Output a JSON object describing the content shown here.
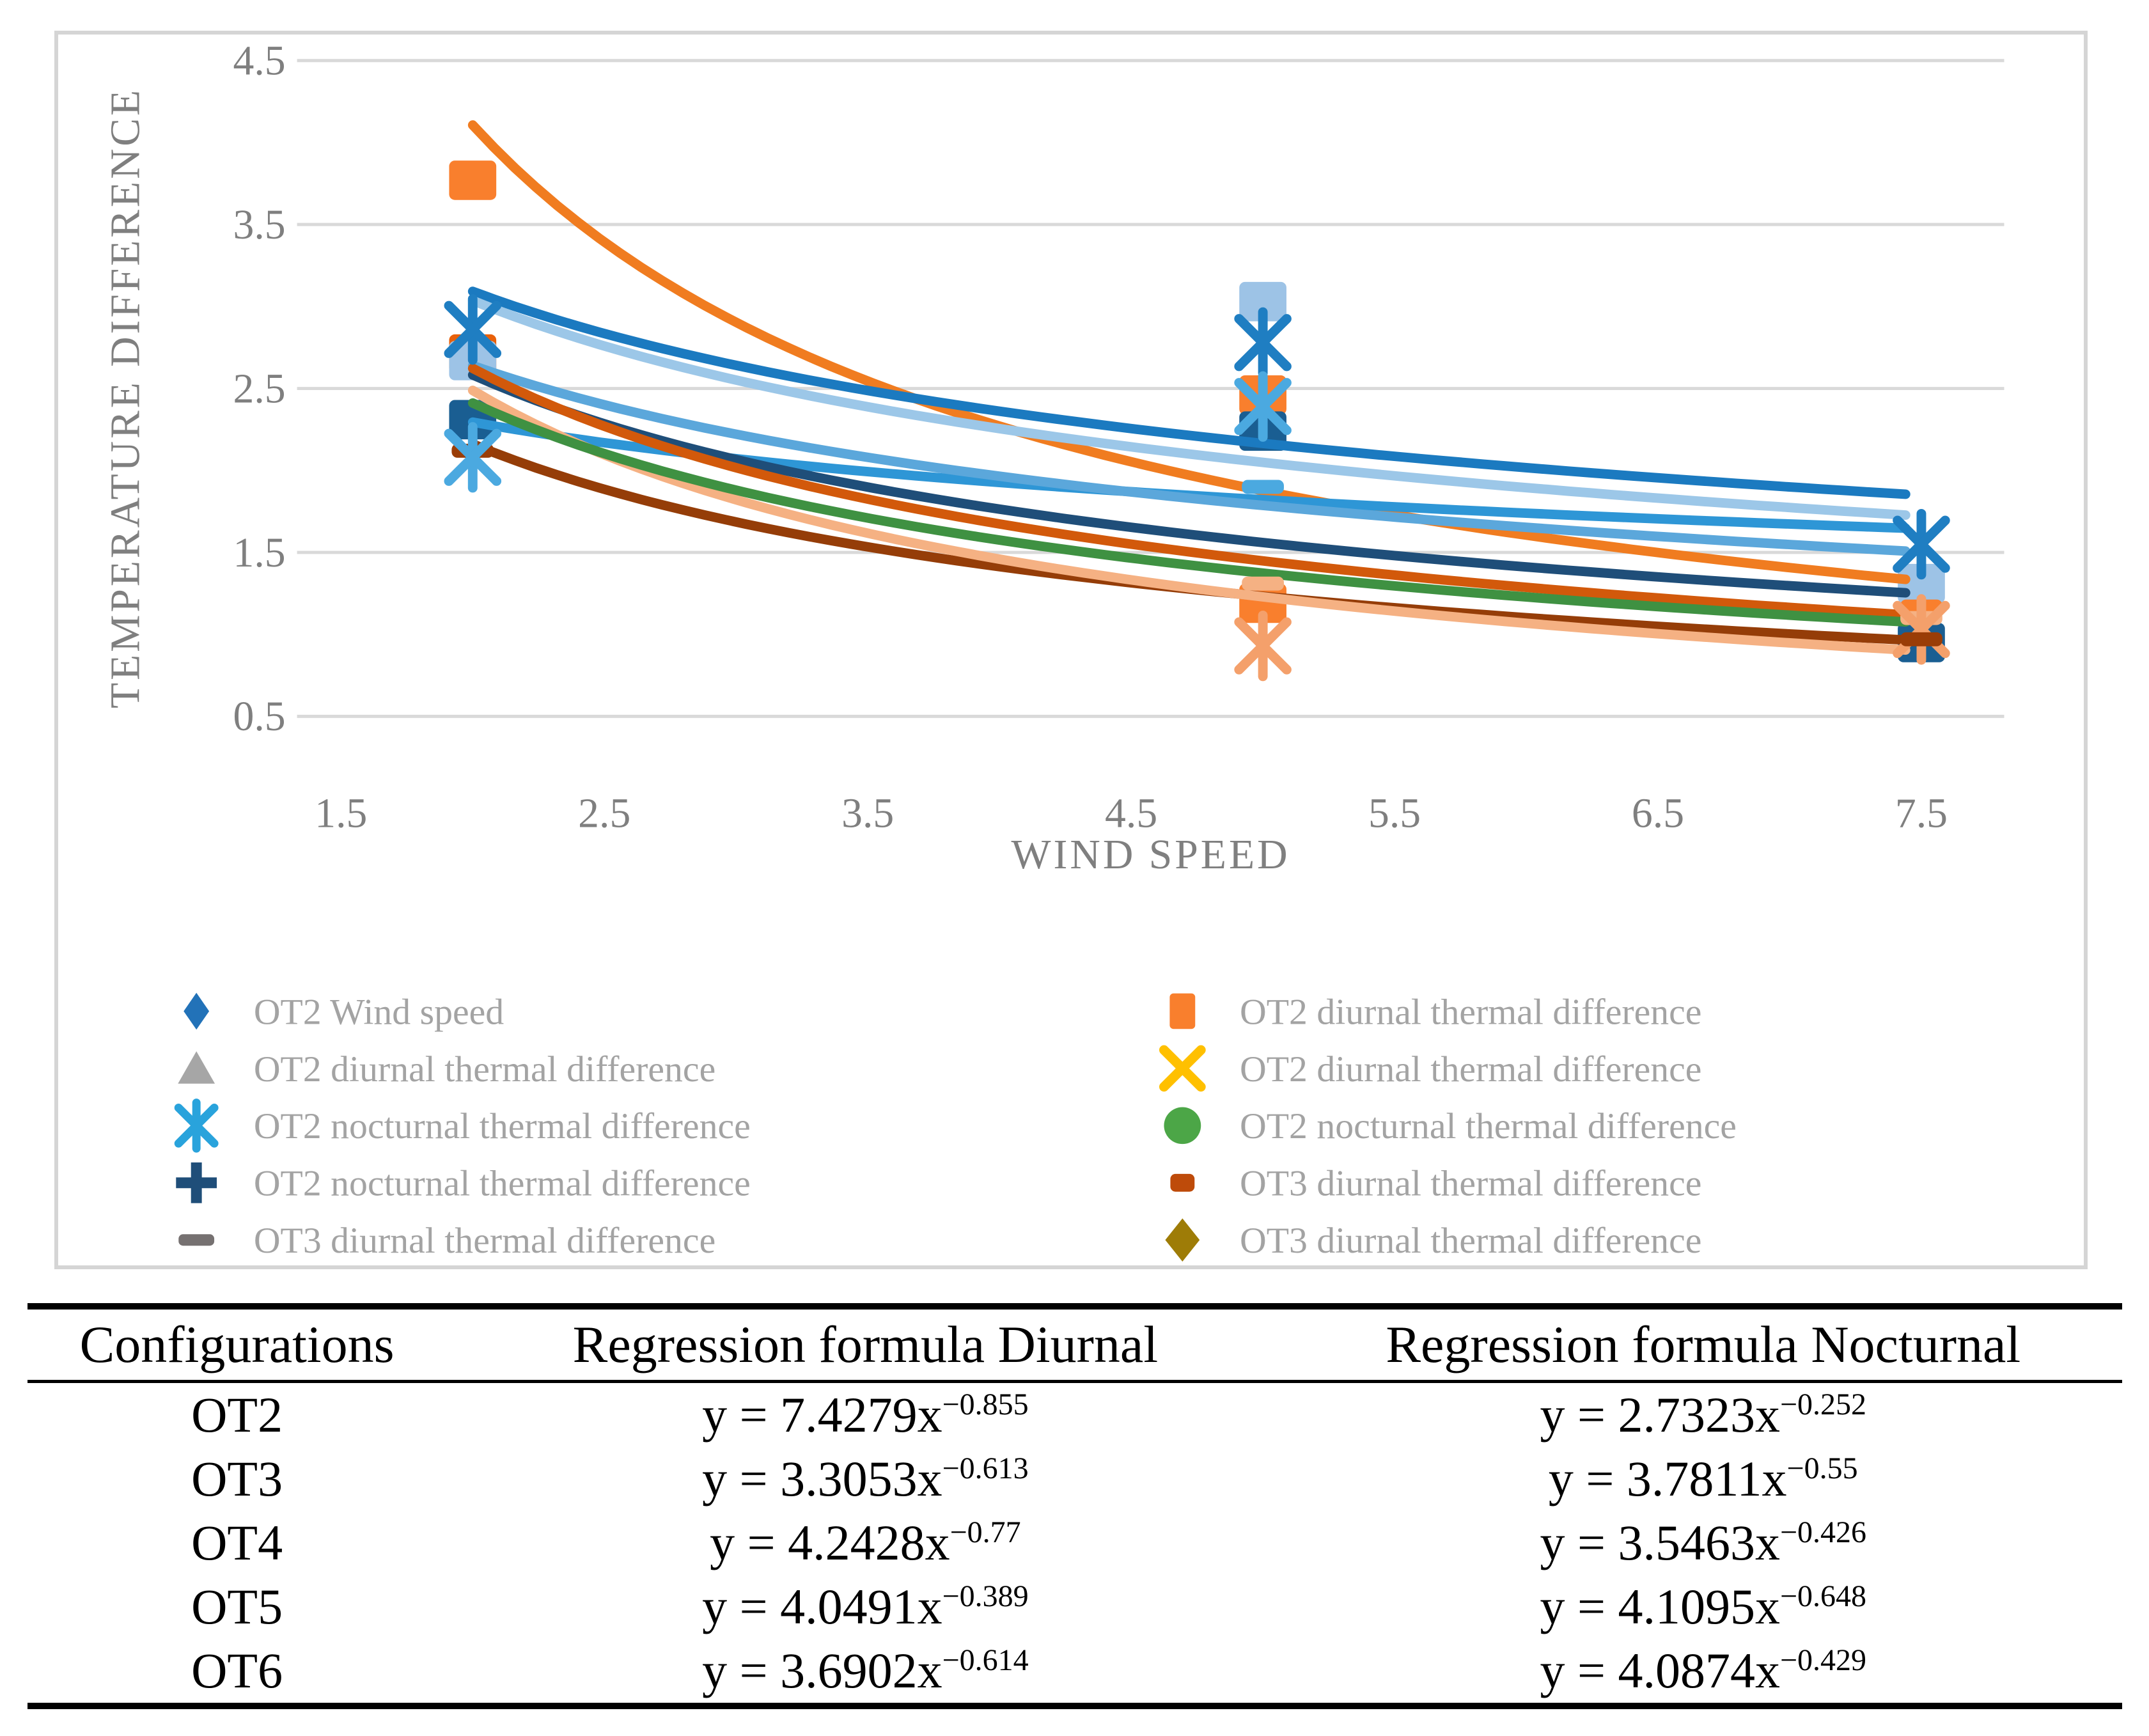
{
  "figure": {
    "border_color": "#D5D5D5",
    "gridline_color": "#D9D9D9",
    "axis_text_color": "#7F7F7F",
    "legend_text_color": "#A3A3A3"
  },
  "chart_data": {
    "type": "scatter",
    "title": "",
    "xlabel": "WIND SPEED",
    "ylabel": "TEMPERATURE DIFFERENCE",
    "xlim": [
      1.5,
      8.0
    ],
    "ylim": [
      0.5,
      4.5
    ],
    "xticks": [
      1.5,
      2.5,
      3.5,
      4.5,
      5.5,
      6.5,
      7.5
    ],
    "yticks": [
      0.5,
      1.5,
      2.5,
      3.5,
      4.5
    ],
    "grid": "horizontal",
    "legend_position": "bottom-two-columns",
    "trendlines": [
      {
        "name": "OT2 diurnal",
        "formula": "y = 7.4279x^-0.855",
        "a": 7.4279,
        "b": -0.855,
        "x_start": 2,
        "x_end": 7.5,
        "color": "#F07C20"
      },
      {
        "name": "OT2 nocturnal",
        "formula": "y = 2.7323x^-0.252",
        "a": 2.7323,
        "b": -0.252,
        "x_start": 2,
        "x_end": 7.5,
        "color": "#2E96D6"
      },
      {
        "name": "OT3 diurnal",
        "formula": "y = 3.3053x^-0.613",
        "a": 3.3053,
        "b": -0.613,
        "x_start": 2,
        "x_end": 7.5,
        "color": "#953D08"
      },
      {
        "name": "OT3 nocturnal",
        "formula": "y = 3.7811x^-0.55",
        "a": 3.7811,
        "b": -0.55,
        "x_start": 2,
        "x_end": 7.5,
        "color": "#1F4E79"
      },
      {
        "name": "OT4 diurnal",
        "formula": "y = 4.2428x^-0.77",
        "a": 4.2428,
        "b": -0.77,
        "x_start": 2,
        "x_end": 7.5,
        "color": "#F5B183"
      },
      {
        "name": "OT4 nocturnal",
        "formula": "y = 3.5463x^-0.426",
        "a": 3.5463,
        "b": -0.426,
        "x_start": 2,
        "x_end": 7.5,
        "color": "#5BA7DB"
      },
      {
        "name": "OT5 diurnal",
        "formula": "y = 4.0491x^-0.389",
        "a": 4.0491,
        "b": -0.389,
        "x_start": 2,
        "x_end": 7.5,
        "color": "#1B7AC0"
      },
      {
        "name": "OT5 nocturnal",
        "formula": "y = 4.1095x^-0.648",
        "a": 4.1095,
        "b": -0.648,
        "x_start": 2,
        "x_end": 7.5,
        "color": "#D2590B"
      },
      {
        "name": "OT6 diurnal",
        "formula": "y = 3.6902x^-0.614",
        "a": 3.6902,
        "b": -0.614,
        "x_start": 2,
        "x_end": 7.5,
        "color": "#3F9142"
      },
      {
        "name": "OT6 nocturnal",
        "formula": "y = 4.0874x^-0.429",
        "a": 4.0874,
        "b": -0.429,
        "x_start": 2,
        "x_end": 7.5,
        "color": "#9CC7E8"
      }
    ],
    "scatter_points": [
      {
        "x": 2,
        "y": 3.77,
        "shape": "square",
        "color": "#F97F2D"
      },
      {
        "x": 2,
        "y": 2.71,
        "shape": "square",
        "color": "#E8600A"
      },
      {
        "x": 2,
        "y": 2.67,
        "shape": "square",
        "color": "#9DC3E6"
      },
      {
        "x": 2,
        "y": 2.31,
        "shape": "square",
        "color": "#1A5E92"
      },
      {
        "x": 2,
        "y": 2.86,
        "shape": "asterisk",
        "color": "#1F7EC2"
      },
      {
        "x": 2,
        "y": 2.12,
        "shape": "dash",
        "color": "#9A3D07"
      },
      {
        "x": 2,
        "y": 2.08,
        "shape": "asterisk",
        "color": "#4BA9E0"
      },
      {
        "x": 5,
        "y": 3.03,
        "shape": "square",
        "color": "#9DC3E6"
      },
      {
        "x": 5,
        "y": 2.46,
        "shape": "square",
        "color": "#F97F2D"
      },
      {
        "x": 5,
        "y": 2.24,
        "shape": "square",
        "color": "#1A5E92"
      },
      {
        "x": 5,
        "y": 1.19,
        "shape": "square",
        "color": "#F97F2D"
      },
      {
        "x": 5,
        "y": 2.78,
        "shape": "asterisk",
        "color": "#1F7EC2"
      },
      {
        "x": 5,
        "y": 2.39,
        "shape": "asterisk",
        "color": "#4BA9E0"
      },
      {
        "x": 5,
        "y": 1.9,
        "shape": "dash",
        "color": "#4BA9E0"
      },
      {
        "x": 5,
        "y": 1.31,
        "shape": "dash",
        "color": "#F5B183"
      },
      {
        "x": 5,
        "y": 0.93,
        "shape": "asterisk",
        "color": "#F4A06B"
      },
      {
        "x": 7.5,
        "y": 1.31,
        "shape": "square",
        "color": "#9DC3E6"
      },
      {
        "x": 7.5,
        "y": 0.95,
        "shape": "square",
        "color": "#1A5E92"
      },
      {
        "x": 7.5,
        "y": 1.55,
        "shape": "asterisk",
        "color": "#1F7EC2"
      },
      {
        "x": 7.5,
        "y": 1.17,
        "shape": "dash",
        "color": "#F97F2D"
      },
      {
        "x": 7.5,
        "y": 1.1,
        "shape": "dash",
        "color": "#F5B183"
      },
      {
        "x": 7.5,
        "y": 1.03,
        "shape": "asterisk",
        "color": "#F4A06B"
      },
      {
        "x": 7.5,
        "y": 0.97,
        "shape": "dash",
        "color": "#9A3D07"
      }
    ],
    "legend": {
      "left": [
        {
          "label": "OT2 Wind speed",
          "marker": "diamond",
          "color": "#2272B8"
        },
        {
          "label": "OT2 diurnal thermal difference",
          "marker": "triangle",
          "color": "#A6A6A6"
        },
        {
          "label": "OT2 nocturnal thermal difference",
          "marker": "asterisk-small",
          "color": "#29A3DC"
        },
        {
          "label": "OT2 nocturnal thermal difference",
          "marker": "plus",
          "color": "#1F4E79"
        },
        {
          "label": "OT3 diurnal thermal difference",
          "marker": "dash-small",
          "color": "#767171"
        }
      ],
      "right": [
        {
          "label": "OT2 diurnal thermal difference",
          "marker": "square-tall",
          "color": "#F97F2D"
        },
        {
          "label": "OT2 diurnal thermal difference",
          "marker": "x",
          "color": "#FFC000"
        },
        {
          "label": "OT2 nocturnal thermal difference",
          "marker": "circle",
          "color": "#4CA647"
        },
        {
          "label": "OT3 diurnal thermal difference",
          "marker": "square-small",
          "color": "#BE4B0A"
        },
        {
          "label": "OT3 diurnal thermal difference",
          "marker": "diamond2",
          "color": "#9E7C07"
        }
      ]
    }
  },
  "table": {
    "headers": [
      "Configurations",
      "Regression formula Diurnal",
      "Regression formula Nocturnal"
    ],
    "rows": [
      {
        "config": "OT2",
        "d_base": "y = 7.4279x",
        "d_exp": "−0.855",
        "n_base": "y = 2.7323x",
        "n_exp": "−0.252"
      },
      {
        "config": "OT3",
        "d_base": "y = 3.3053x",
        "d_exp": "−0.613",
        "n_base": "y = 3.7811x",
        "n_exp": "−0.55"
      },
      {
        "config": "OT4",
        "d_base": "y = 4.2428x",
        "d_exp": "−0.77",
        "n_base": "y = 3.5463x",
        "n_exp": "−0.426"
      },
      {
        "config": "OT5",
        "d_base": "y = 4.0491x",
        "d_exp": "−0.389",
        "n_base": "y = 4.1095x",
        "n_exp": "−0.648"
      },
      {
        "config": "OT6",
        "d_base": "y = 3.6902x",
        "d_exp": "−0.614",
        "n_base": "y = 4.0874x",
        "n_exp": "−0.429"
      }
    ]
  }
}
